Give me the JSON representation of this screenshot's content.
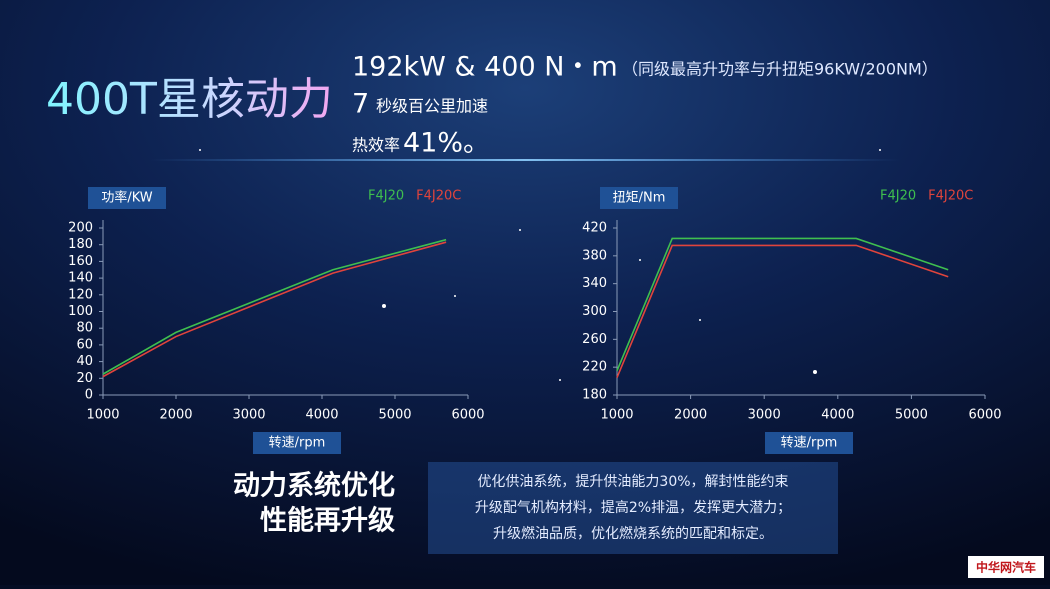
{
  "header": {
    "title": "400T星核动力",
    "power": "192kW & 400 N・m",
    "power_note": "（同级最高升功率与升扭矩96KW/200NM）",
    "accel_number": "7",
    "accel_text": "秒级百公里加速",
    "efficiency_label": "热效率",
    "efficiency_value": "41%。"
  },
  "chart_data": [
    {
      "type": "line",
      "y_label": "功率/KW",
      "x_label": "转速/rpm",
      "x": [
        1000,
        2000,
        4150,
        5700
      ],
      "series": [
        {
          "name": "F4J20",
          "color": "#3fbf4f",
          "values": [
            25,
            75,
            150,
            186
          ]
        },
        {
          "name": "F4J20C",
          "color": "#e0443c",
          "values": [
            22,
            70,
            146,
            183
          ]
        }
      ],
      "xlim": [
        1000,
        6000
      ],
      "xticks": [
        1000,
        2000,
        3000,
        4000,
        5000,
        6000
      ],
      "ylim": [
        0,
        200
      ],
      "yticks": [
        0,
        20,
        40,
        60,
        80,
        100,
        120,
        140,
        160,
        180,
        200
      ]
    },
    {
      "type": "line",
      "y_label": "扭矩/Nm",
      "x_label": "转速/rpm",
      "x": [
        1000,
        1750,
        4250,
        5500
      ],
      "series": [
        {
          "name": "F4J20",
          "color": "#3fbf4f",
          "values": [
            215,
            405,
            405,
            360
          ]
        },
        {
          "name": "F4J20C",
          "color": "#e0443c",
          "values": [
            205,
            395,
            395,
            350
          ]
        }
      ],
      "xlim": [
        1000,
        6000
      ],
      "xticks": [
        1000,
        2000,
        3000,
        4000,
        5000,
        6000
      ],
      "ylim": [
        180,
        420
      ],
      "yticks": [
        180,
        220,
        260,
        300,
        340,
        380,
        420
      ]
    }
  ],
  "summary": {
    "heading": [
      "动力系统优化",
      "性能再升级"
    ],
    "lines": [
      "优化供油系统，提升供油能力30%，解封性能约束",
      "升级配气机构材料，提高2%排温，发挥更大潜力；",
      "升级燃油品质，优化燃烧系统的匹配和标定。"
    ]
  },
  "watermark": "中华网汽车"
}
